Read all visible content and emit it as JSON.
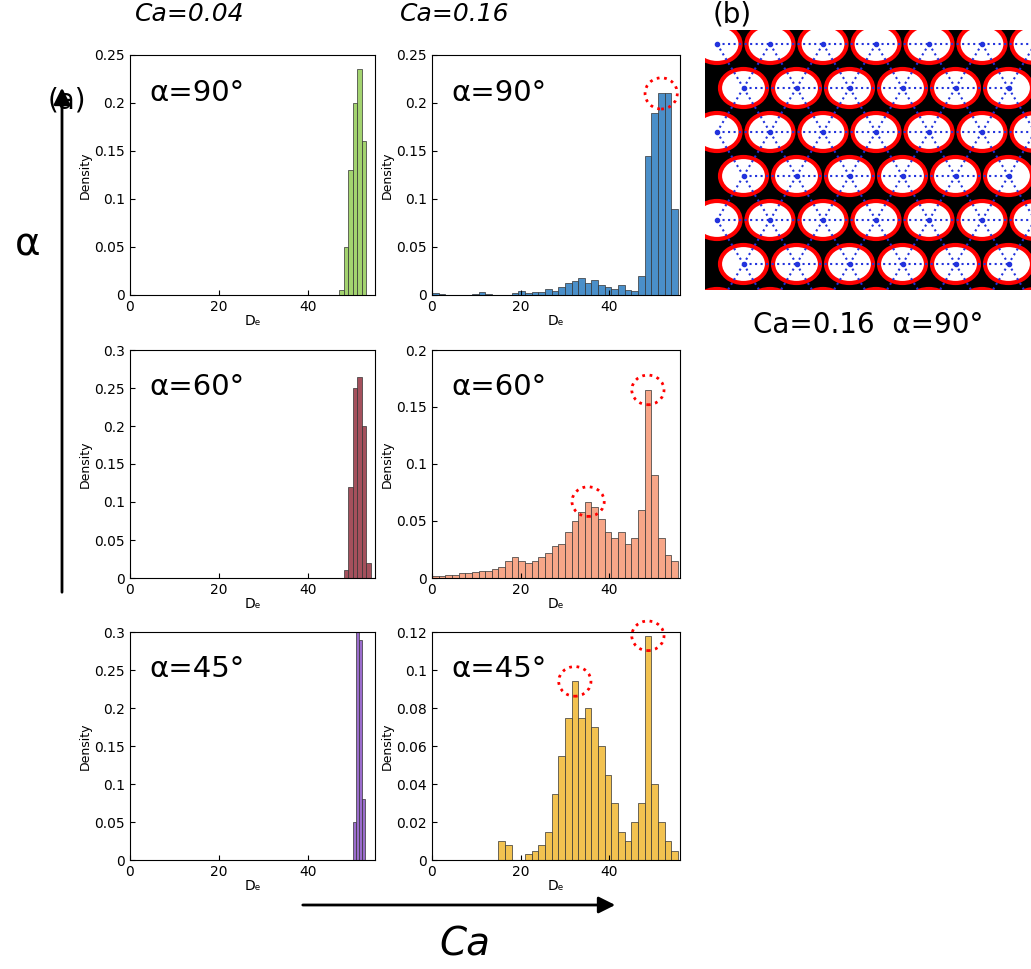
{
  "chart_data": [
    {
      "type": "histogram",
      "annotation": "α=90°",
      "xlabel": "Dₑ",
      "ylabel": "Density",
      "color": "#a3d36f",
      "bins": [
        47,
        48,
        49,
        50,
        51,
        52,
        53
      ],
      "counts": [
        0.005,
        0.05,
        0.13,
        0.2,
        0.235,
        0.16
      ],
      "xlim": [
        0,
        55
      ],
      "ylim": [
        0,
        0.25
      ],
      "xticks": [
        0,
        20,
        40
      ],
      "yticks": [
        0,
        0.05,
        0.1,
        0.15,
        0.2,
        0.25
      ]
    },
    {
      "type": "histogram",
      "annotation": "α=90°",
      "xlabel": "Dₑ",
      "ylabel": "Density",
      "color": "#4a8fc9",
      "bins": [
        0,
        1.5,
        3,
        4.5,
        6,
        7.5,
        9,
        10.5,
        12,
        13.5,
        15,
        16.5,
        18,
        19.5,
        21,
        22.5,
        24,
        25.5,
        27,
        28.5,
        30,
        31.5,
        33,
        34.5,
        36,
        37.5,
        39,
        40.5,
        42,
        43.5,
        45,
        46.5,
        48,
        49.5,
        51,
        52.5,
        54,
        55.5
      ],
      "counts": [
        0.002,
        0.001,
        0,
        0,
        0,
        0,
        0.001,
        0.003,
        0.001,
        0,
        0,
        0,
        0.002,
        0.004,
        0.002,
        0.003,
        0.003,
        0.006,
        0.004,
        0.008,
        0.012,
        0.015,
        0.018,
        0.013,
        0.016,
        0.01,
        0.008,
        0.006,
        0.01,
        0.005,
        0.004,
        0.02,
        0.145,
        0.19,
        0.21,
        0.21,
        0.09
      ],
      "xlim": [
        0,
        56
      ],
      "ylim": [
        0,
        0.25
      ],
      "xticks": [
        0,
        20,
        40
      ],
      "yticks": [
        0,
        0.05,
        0.1,
        0.15,
        0.2,
        0.25
      ]
    },
    {
      "type": "histogram",
      "annotation": "α=60°",
      "xlabel": "Dₑ",
      "ylabel": "Density",
      "color": "#a4505c",
      "bins": [
        48,
        49,
        50,
        51,
        52,
        53,
        54
      ],
      "counts": [
        0.01,
        0.12,
        0.25,
        0.265,
        0.2,
        0.02
      ],
      "xlim": [
        0,
        55
      ],
      "ylim": [
        0,
        0.3
      ],
      "xticks": [
        0,
        20,
        40
      ],
      "yticks": [
        0,
        0.05,
        0.1,
        0.15,
        0.2,
        0.25,
        0.3
      ]
    },
    {
      "type": "histogram",
      "annotation": "α=60°",
      "xlabel": "Dₑ",
      "ylabel": "Density",
      "color": "#f7a688",
      "bins": [
        0,
        1.5,
        3,
        4.5,
        6,
        7.5,
        9,
        10.5,
        12,
        13.5,
        15,
        16.5,
        18,
        19.5,
        21,
        22.5,
        24,
        25.5,
        27,
        28.5,
        30,
        31.5,
        33,
        34.5,
        36,
        37.5,
        39,
        40.5,
        42,
        43.5,
        45,
        46.5,
        48,
        49.5,
        51,
        52.5,
        54,
        55.5
      ],
      "counts": [
        0.002,
        0.002,
        0.003,
        0.003,
        0.004,
        0.004,
        0.005,
        0.006,
        0.006,
        0.008,
        0.01,
        0.015,
        0.018,
        0.015,
        0.013,
        0.015,
        0.018,
        0.022,
        0.028,
        0.03,
        0.04,
        0.05,
        0.058,
        0.067,
        0.062,
        0.052,
        0.04,
        0.035,
        0.04,
        0.03,
        0.035,
        0.06,
        0.165,
        0.09,
        0.035,
        0.02,
        0.015
      ],
      "xlim": [
        0,
        56
      ],
      "ylim": [
        0,
        0.2
      ],
      "xticks": [
        0,
        20,
        40
      ],
      "yticks": [
        0,
        0.05,
        0.1,
        0.15,
        0.2
      ]
    },
    {
      "type": "histogram",
      "annotation": "α=45°",
      "xlabel": "Dₑ",
      "ylabel": "Density",
      "color": "#9a6ccc",
      "bins": [
        50,
        50.7,
        51.4,
        52.1,
        52.8
      ],
      "counts": [
        0.05,
        0.3,
        0.29,
        0.08
      ],
      "xlim": [
        0,
        55
      ],
      "ylim": [
        0,
        0.3
      ],
      "xticks": [
        0,
        20,
        40
      ],
      "yticks": [
        0,
        0.05,
        0.1,
        0.15,
        0.2,
        0.25,
        0.3
      ]
    },
    {
      "type": "histogram",
      "annotation": "α=45°",
      "xlabel": "Dₑ",
      "ylabel": "Density",
      "color": "#f2c250",
      "bins": [
        0,
        1.5,
        3,
        4.5,
        6,
        7.5,
        9,
        10.5,
        12,
        13.5,
        15,
        16.5,
        18,
        19.5,
        21,
        22.5,
        24,
        25.5,
        27,
        28.5,
        30,
        31.5,
        33,
        34.5,
        36,
        37.5,
        39,
        40.5,
        42,
        43.5,
        45,
        46.5,
        48,
        49.5,
        51,
        52.5,
        54,
        55.5
      ],
      "counts": [
        0,
        0,
        0,
        0,
        0,
        0,
        0,
        0,
        0,
        0,
        0.01,
        0.008,
        0,
        0,
        0.003,
        0.005,
        0.008,
        0.015,
        0.035,
        0.055,
        0.075,
        0.094,
        0.075,
        0.08,
        0.07,
        0.06,
        0.045,
        0.03,
        0.015,
        0.01,
        0.02,
        0.03,
        0.118,
        0.04,
        0.02,
        0.01,
        0.005
      ],
      "xlim": [
        0,
        56
      ],
      "ylim": [
        0,
        0.12
      ],
      "xticks": [
        0,
        20,
        40
      ],
      "yticks": [
        0,
        0.02,
        0.04,
        0.06,
        0.08,
        0.1,
        0.12
      ]
    }
  ],
  "column_titles": [
    "Ca=0.04",
    "Ca=0.16"
  ],
  "panel_labels": [
    "(a)",
    "(b)"
  ],
  "row_arrow_label": "α",
  "column_arrow_label": "Ca",
  "image_caption": "Ca=0.16  α=90°"
}
